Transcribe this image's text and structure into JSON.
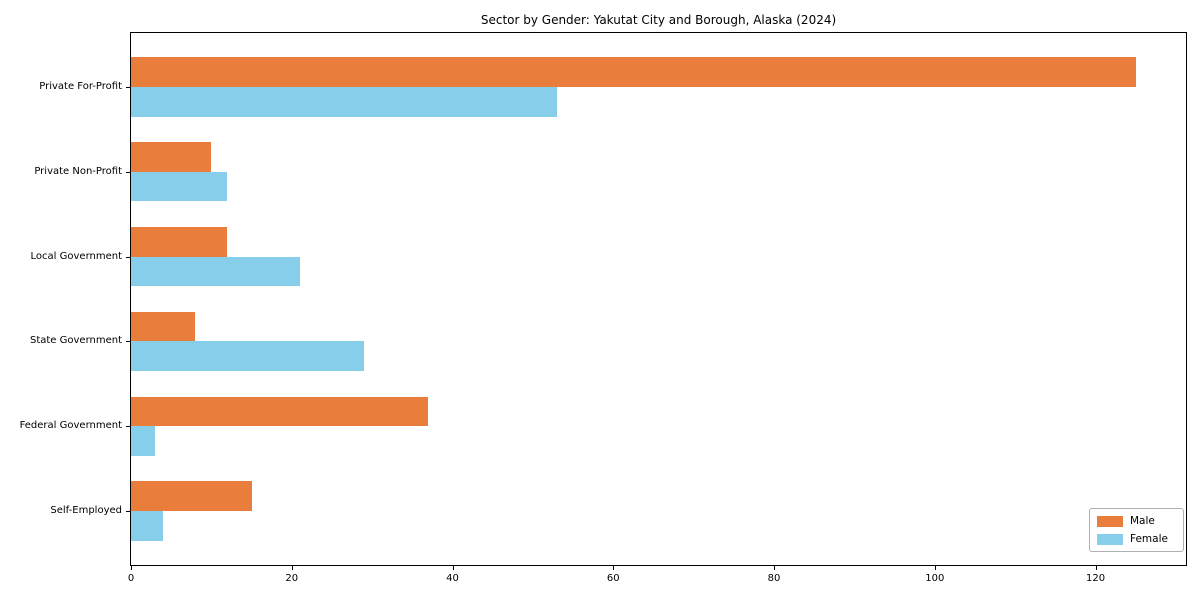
{
  "chart_data": {
    "type": "bar",
    "orientation": "horizontal",
    "title": "Sector by Gender: Yakutat City and Borough, Alaska (2024)",
    "categories": [
      "Private For-Profit",
      "Private Non-Profit",
      "Local Government",
      "State Government",
      "Federal Government",
      "Self-Employed"
    ],
    "series": [
      {
        "name": "Male",
        "color": "#e87d3c",
        "values": [
          125,
          10,
          12,
          8,
          37,
          15
        ]
      },
      {
        "name": "Female",
        "color": "#87ceeb",
        "values": [
          53,
          12,
          21,
          29,
          3,
          4
        ]
      }
    ],
    "xlabel": "",
    "ylabel": "",
    "xlim": [
      0,
      131.25
    ],
    "xticks": [
      0,
      20,
      40,
      60,
      80,
      100,
      120
    ],
    "grid": false,
    "legend_position": "lower right",
    "bar_group_height_units": 0.7,
    "background": "#ffffff",
    "spine_color": "#000000"
  }
}
